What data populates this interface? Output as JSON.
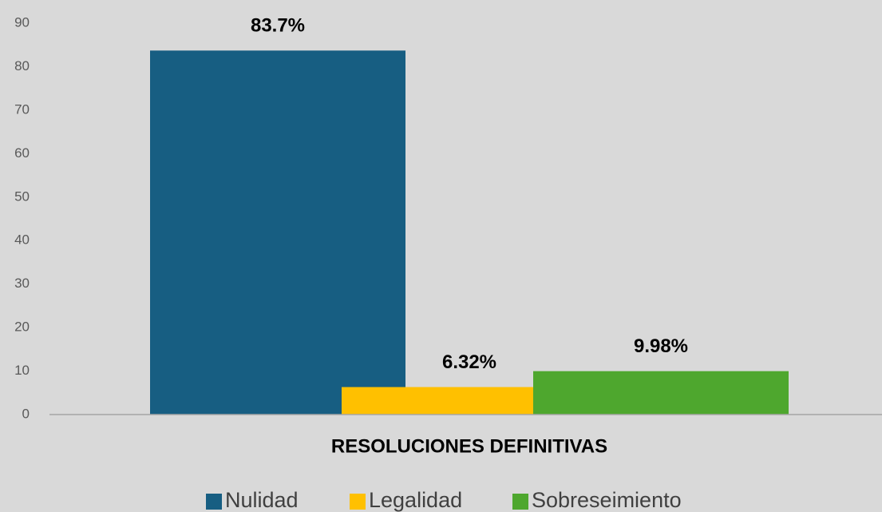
{
  "chart_data": {
    "type": "bar",
    "categories": [
      "RESOLUCIONES DEFINITIVAS"
    ],
    "series": [
      {
        "name": "Nulidad",
        "color": "#175e82",
        "values": [
          83.7
        ],
        "value_labels": [
          "83.7%"
        ]
      },
      {
        "name": "Legalidad",
        "color": "#ffc000",
        "values": [
          6.32
        ],
        "value_labels": [
          "6.32%"
        ]
      },
      {
        "name": "Sobreseimiento",
        "color": "#4ea72e",
        "values": [
          9.98
        ],
        "value_labels": [
          "9.98%"
        ]
      }
    ],
    "ylim": [
      0,
      90
    ],
    "yticks": [
      0,
      10,
      20,
      30,
      40,
      50,
      60,
      70,
      80,
      90
    ],
    "grid": false,
    "legend": "bottom"
  }
}
